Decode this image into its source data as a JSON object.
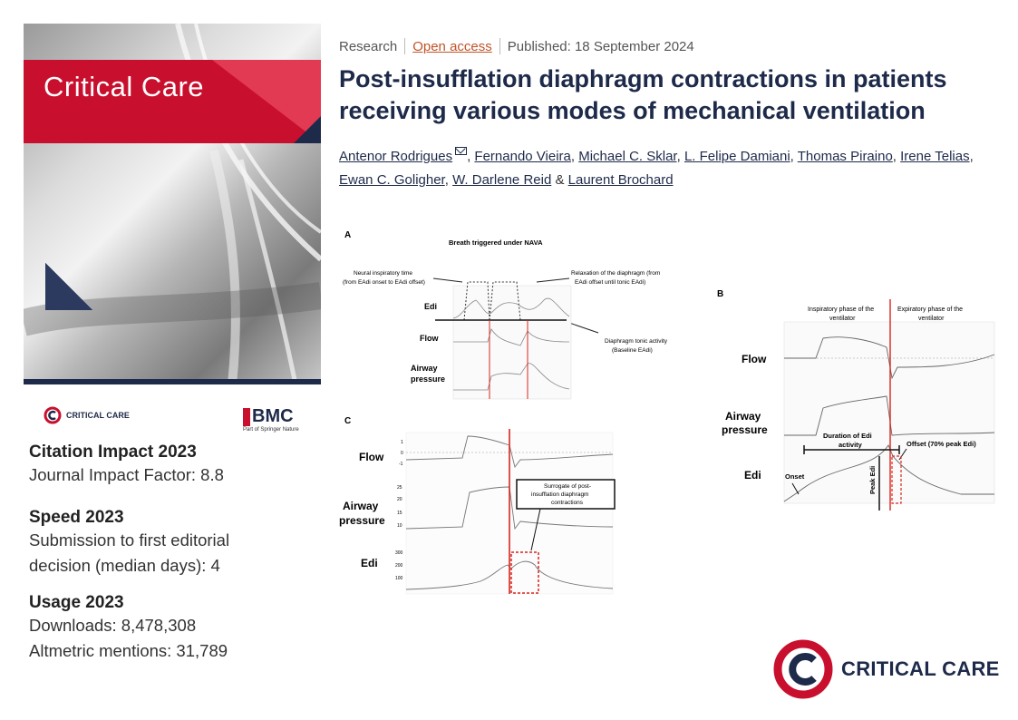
{
  "journal": {
    "cover_title": "Critical Care",
    "small_logo_text": "CRITICAL CARE",
    "publisher": "BMC",
    "publisher_sub": "Part of Springer Nature",
    "big_logo_text": "CRITICAL CARE",
    "colors": {
      "brand_red": "#c8102e",
      "navy": "#1e2a4a"
    }
  },
  "metrics": [
    {
      "heading": "Citation Impact 2023",
      "lines": [
        "Journal Impact Factor: 8.8"
      ]
    },
    {
      "heading": "Speed 2023",
      "lines": [
        "Submission to first editorial",
        "decision (median days): 4"
      ]
    },
    {
      "heading": "Usage 2023",
      "lines": [
        "Downloads: 8,478,308",
        "Altmetric mentions: 31,789"
      ]
    }
  ],
  "article": {
    "type": "Research",
    "access": "Open access",
    "published": "Published: 18 September 2024",
    "title_line1": "Post-insufflation diaphragm contractions in patients",
    "title_line2": "receiving various modes of mechanical ventilation",
    "authors": [
      "Antenor Rodrigues",
      "Fernando Vieira",
      "Michael C. Sklar",
      "L. Felipe Damiani",
      "Thomas Piraino",
      "Irene Telias",
      "Ewan C. Goligher",
      "W. Darlene Reid",
      "Laurent Brochard"
    ],
    "author_sep": ",",
    "author_and": "&"
  },
  "figure": {
    "panelA": {
      "label": "A",
      "title": "Breath triggered under NAVA",
      "annot_left": [
        "Neural inspiratory time",
        "(from EAdi onset to EAdi offset)"
      ],
      "annot_right": [
        "Relaxation of the diaphragm (from",
        "EAdi offset until tonic EAdi)"
      ],
      "annot_tonic": [
        "Diaphragm tonic activity",
        "(Baseline EAdi)"
      ],
      "traces": [
        "Edi",
        "Flow",
        "Airway",
        "pressure"
      ]
    },
    "panelB": {
      "label": "B",
      "phase_insp": [
        "Inspiratory phase of the",
        "ventilator"
      ],
      "phase_exp": [
        "Expiratory phase of the",
        "ventilator"
      ],
      "traces": [
        "Flow",
        "Airway",
        "pressure",
        "Edi"
      ],
      "duration": [
        "Duration of Edi",
        "activity"
      ],
      "offset": "Offset (70% peak Edi)",
      "onset": "Onset",
      "peak": "Peak Edi"
    },
    "panelC": {
      "label": "C",
      "traces": [
        "Flow",
        "Airway",
        "pressure",
        "Edi"
      ],
      "surrogate": [
        "Surrogate of post-",
        "insufflation diaphragm",
        "contractions"
      ],
      "ticks_flow": [
        "1",
        "0",
        "-1"
      ],
      "ticks_paw": [
        "25",
        "20",
        "15",
        "10"
      ],
      "ticks_edi": [
        "300",
        "200",
        "100"
      ]
    }
  }
}
